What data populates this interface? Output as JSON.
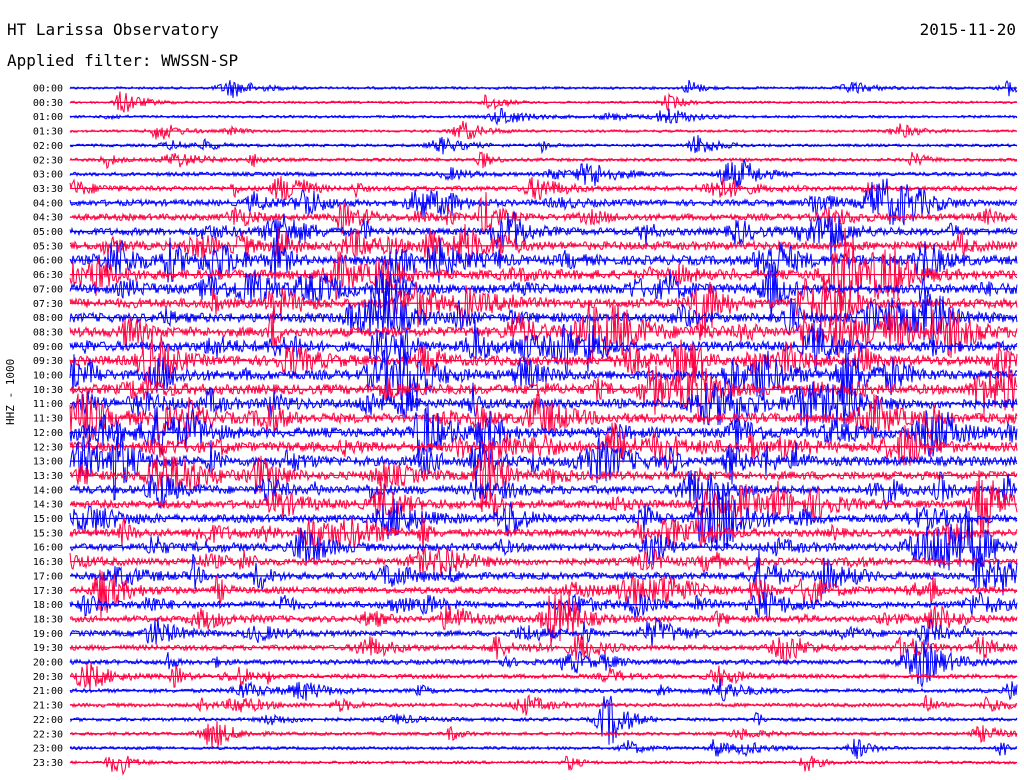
{
  "header": {
    "title": "HT Larissa Observatory",
    "date": "2015-11-20",
    "filter": "Applied filter: WWSSN-SP"
  },
  "chart_data": {
    "type": "line",
    "title": "HT Larissa Observatory",
    "subtitle": "Applied filter: WWSSN-SP",
    "date": "2015-11-20",
    "ylabel": "HHZ - 1000",
    "xlabel": "",
    "colors": [
      "#0000ff",
      "#ff0040"
    ],
    "rows": [
      {
        "time": "00:00",
        "color": "#0000ff",
        "activity": 0.15
      },
      {
        "time": "00:30",
        "color": "#ff0040",
        "activity": 0.12
      },
      {
        "time": "01:00",
        "color": "#0000ff",
        "activity": 0.15
      },
      {
        "time": "01:30",
        "color": "#ff0040",
        "activity": 0.15
      },
      {
        "time": "02:00",
        "color": "#0000ff",
        "activity": 0.18
      },
      {
        "time": "02:30",
        "color": "#ff0040",
        "activity": 0.22
      },
      {
        "time": "03:00",
        "color": "#0000ff",
        "activity": 0.3
      },
      {
        "time": "03:30",
        "color": "#ff0040",
        "activity": 0.4
      },
      {
        "time": "04:00",
        "color": "#0000ff",
        "activity": 0.55
      },
      {
        "time": "04:30",
        "color": "#ff0040",
        "activity": 0.6
      },
      {
        "time": "05:00",
        "color": "#0000ff",
        "activity": 0.7
      },
      {
        "time": "05:30",
        "color": "#ff0040",
        "activity": 0.8
      },
      {
        "time": "06:00",
        "color": "#0000ff",
        "activity": 0.9
      },
      {
        "time": "06:30",
        "color": "#ff0040",
        "activity": 0.9
      },
      {
        "time": "07:00",
        "color": "#0000ff",
        "activity": 0.9
      },
      {
        "time": "07:30",
        "color": "#ff0040",
        "activity": 0.9
      },
      {
        "time": "08:00",
        "color": "#0000ff",
        "activity": 0.9
      },
      {
        "time": "08:30",
        "color": "#ff0040",
        "activity": 0.95
      },
      {
        "time": "09:00",
        "color": "#0000ff",
        "activity": 0.95
      },
      {
        "time": "09:30",
        "color": "#ff0040",
        "activity": 0.95
      },
      {
        "time": "10:00",
        "color": "#0000ff",
        "activity": 0.95
      },
      {
        "time": "10:30",
        "color": "#ff0040",
        "activity": 0.95
      },
      {
        "time": "11:00",
        "color": "#0000ff",
        "activity": 0.95
      },
      {
        "time": "11:30",
        "color": "#ff0040",
        "activity": 0.95
      },
      {
        "time": "12:00",
        "color": "#0000ff",
        "activity": 0.95
      },
      {
        "time": "12:30",
        "color": "#ff0040",
        "activity": 0.9
      },
      {
        "time": "13:00",
        "color": "#0000ff",
        "activity": 0.9
      },
      {
        "time": "13:30",
        "color": "#ff0040",
        "activity": 0.8
      },
      {
        "time": "14:00",
        "color": "#0000ff",
        "activity": 0.8
      },
      {
        "time": "14:30",
        "color": "#ff0040",
        "activity": 0.75
      },
      {
        "time": "15:00",
        "color": "#0000ff",
        "activity": 0.75
      },
      {
        "time": "15:30",
        "color": "#ff0040",
        "activity": 0.7
      },
      {
        "time": "16:00",
        "color": "#0000ff",
        "activity": 0.7
      },
      {
        "time": "16:30",
        "color": "#ff0040",
        "activity": 0.65
      },
      {
        "time": "17:00",
        "color": "#0000ff",
        "activity": 0.65
      },
      {
        "time": "17:30",
        "color": "#ff0040",
        "activity": 0.6
      },
      {
        "time": "18:00",
        "color": "#0000ff",
        "activity": 0.6
      },
      {
        "time": "18:30",
        "color": "#ff0040",
        "activity": 0.55
      },
      {
        "time": "19:00",
        "color": "#0000ff",
        "activity": 0.5
      },
      {
        "time": "19:30",
        "color": "#ff0040",
        "activity": 0.45
      },
      {
        "time": "20:00",
        "color": "#0000ff",
        "activity": 0.4
      },
      {
        "time": "20:30",
        "color": "#ff0040",
        "activity": 0.35
      },
      {
        "time": "21:00",
        "color": "#0000ff",
        "activity": 0.3
      },
      {
        "time": "21:30",
        "color": "#ff0040",
        "activity": 0.28
      },
      {
        "time": "22:00",
        "color": "#0000ff",
        "activity": 0.25
      },
      {
        "time": "22:30",
        "color": "#ff0040",
        "activity": 0.22
      },
      {
        "time": "23:00",
        "color": "#0000ff",
        "activity": 0.2
      },
      {
        "time": "23:30",
        "color": "#ff0040",
        "activity": 0.2
      }
    ]
  }
}
